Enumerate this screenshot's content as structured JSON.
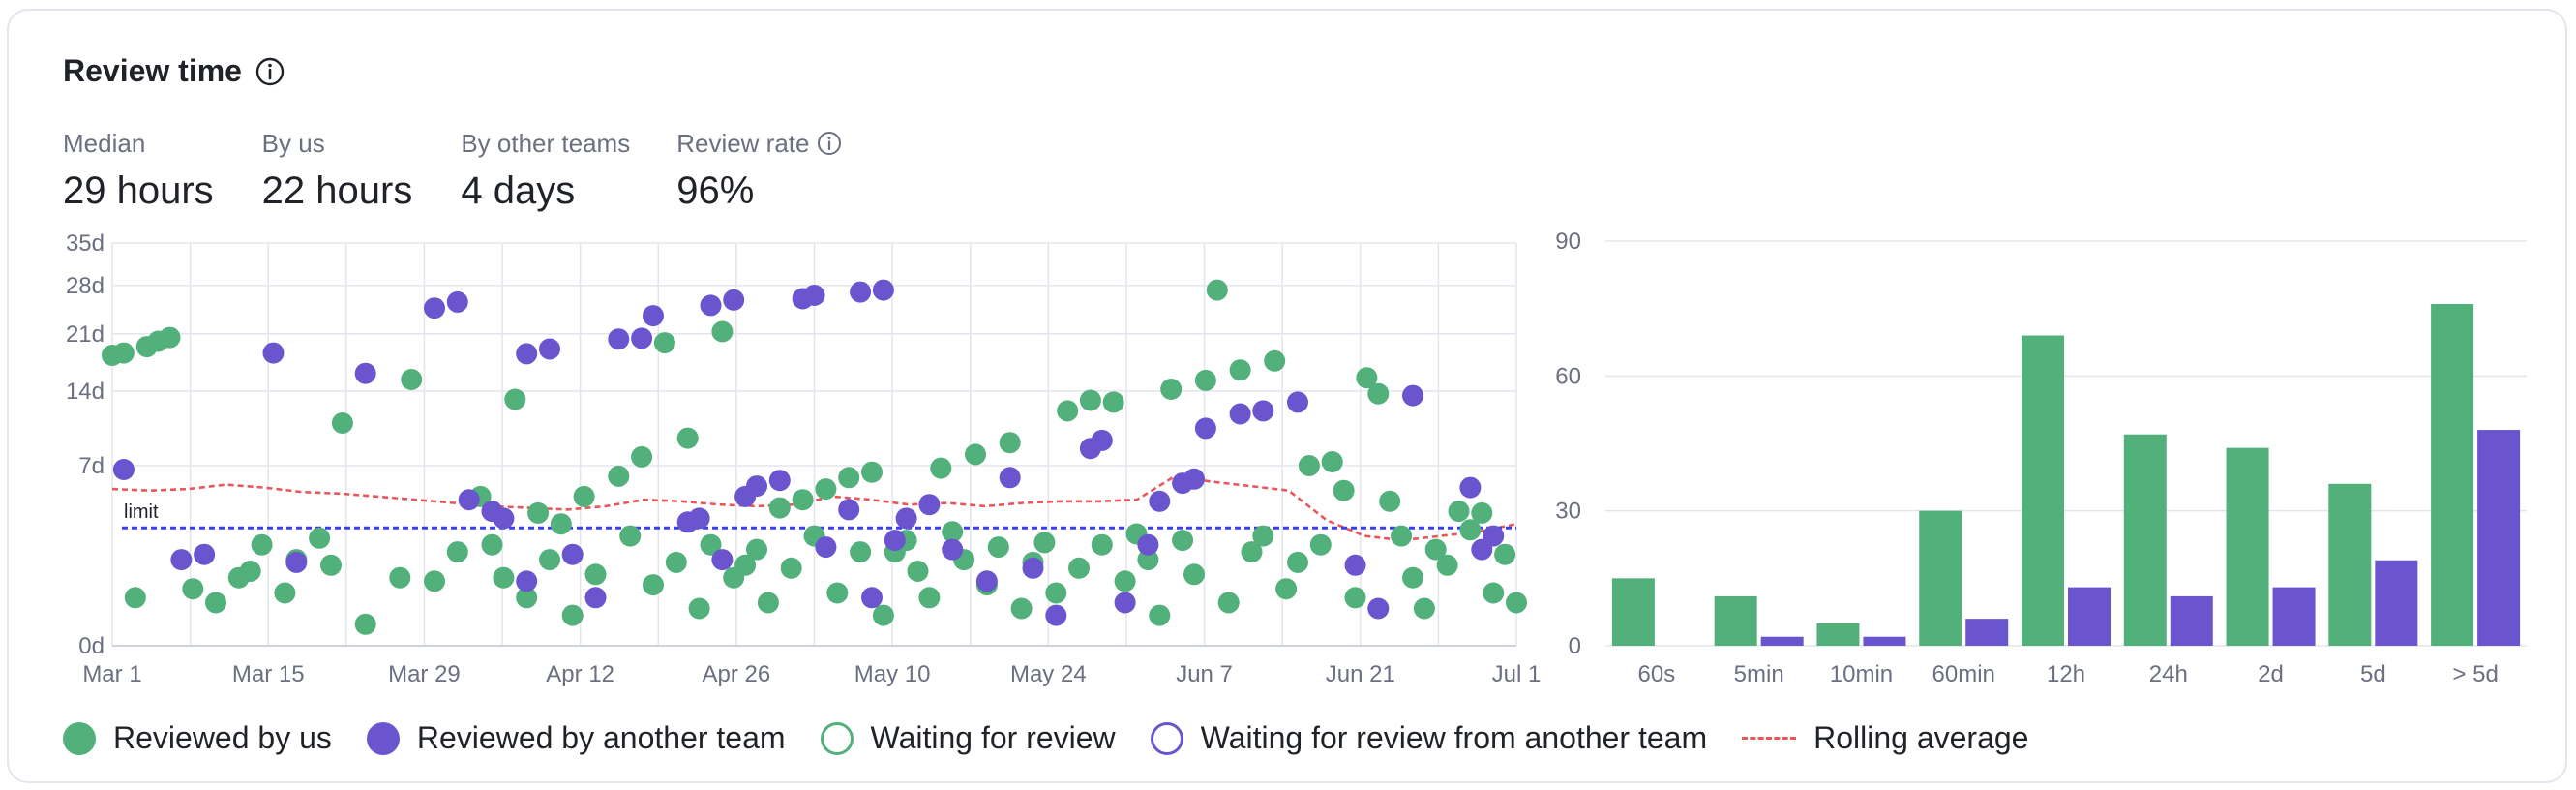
{
  "header": {
    "title": "Review time"
  },
  "stats": [
    {
      "label": "Median",
      "value": "29 hours"
    },
    {
      "label": "By us",
      "value": "22 hours"
    },
    {
      "label": "By other teams",
      "value": "4 days"
    },
    {
      "label": "Review rate",
      "value": "96%",
      "has_info": true
    }
  ],
  "colors": {
    "us": "#52b07a",
    "other": "#6a55cf",
    "rolling": "#e8575a",
    "limit": "#3b3fe6"
  },
  "legend": [
    {
      "label": "Reviewed by us",
      "style": "filled",
      "color": "#52b07a"
    },
    {
      "label": "Reviewed by another team",
      "style": "filled",
      "color": "#6a55cf"
    },
    {
      "label": "Waiting for review",
      "style": "outline",
      "color": "#52b07a"
    },
    {
      "label": "Waiting for review from another team",
      "style": "outline",
      "color": "#6a55cf"
    },
    {
      "label": "Rolling average",
      "style": "dashed",
      "color": "#e8575a"
    }
  ],
  "chart_data": [
    {
      "type": "scatter",
      "x_start": "Mar 1",
      "x_end": "Jul 1",
      "x_ticks": [
        "Mar 1",
        "Mar 15",
        "Mar 29",
        "Apr 12",
        "Apr 26",
        "May 10",
        "May 24",
        "Jun 7",
        "Jun 21",
        "Jul 1"
      ],
      "y_ticks": [
        "0d",
        "7d",
        "14d",
        "21d",
        "28d",
        "35d"
      ],
      "ylim_days": [
        0,
        35
      ],
      "grid": true,
      "limit": {
        "label": "limit",
        "value_days": 3
      },
      "rolling_average_days": [
        5.3,
        5.2,
        5.3,
        5.6,
        5.4,
        5.1,
        5.0,
        4.8,
        4.6,
        4.4,
        4.2,
        4.1,
        4.0,
        4.2,
        4.6,
        4.5,
        4.3,
        4.2,
        4.3,
        4.8,
        4.6,
        4.3,
        4.4,
        4.2,
        4.4,
        4.5,
        4.5,
        4.6,
        6.2,
        5.8,
        5.5,
        5.2,
        3.4,
        2.6,
        2.4,
        2.6,
        2.8,
        3.2
      ],
      "series": [
        {
          "name": "Reviewed by us",
          "points": [
            {
              "x": 0,
              "y": 18.2
            },
            {
              "x": 1,
              "y": 18.5
            },
            {
              "x": 3,
              "y": 19.3
            },
            {
              "x": 4,
              "y": 20.0
            },
            {
              "x": 5,
              "y": 20.5
            },
            {
              "x": 20,
              "y": 10.7
            },
            {
              "x": 48,
              "y": 19.8
            },
            {
              "x": 53,
              "y": 21.3
            },
            {
              "x": 96,
              "y": 27.3
            },
            {
              "x": 26,
              "y": 15.3
            },
            {
              "x": 35,
              "y": 13.1
            },
            {
              "x": 32,
              "y": 4.8
            },
            {
              "x": 37,
              "y": 3.8
            },
            {
              "x": 39,
              "y": 3.2
            },
            {
              "x": 41,
              "y": 4.8
            },
            {
              "x": 44,
              "y": 6.2
            },
            {
              "x": 46,
              "y": 7.7
            },
            {
              "x": 50,
              "y": 9.3
            },
            {
              "x": 58,
              "y": 4.1
            },
            {
              "x": 60,
              "y": 4.6
            },
            {
              "x": 62,
              "y": 5.3
            },
            {
              "x": 64,
              "y": 6.1
            },
            {
              "x": 66,
              "y": 6.5
            },
            {
              "x": 72,
              "y": 6.8
            },
            {
              "x": 75,
              "y": 7.9
            },
            {
              "x": 78,
              "y": 8.9
            },
            {
              "x": 83,
              "y": 11.9
            },
            {
              "x": 85,
              "y": 13.0
            },
            {
              "x": 87,
              "y": 12.8
            },
            {
              "x": 92,
              "y": 14.2
            },
            {
              "x": 95,
              "y": 15.2
            },
            {
              "x": 98,
              "y": 16.4
            },
            {
              "x": 101,
              "y": 17.5
            },
            {
              "x": 104,
              "y": 7.0
            },
            {
              "x": 106,
              "y": 7.3
            },
            {
              "x": 107,
              "y": 5.2
            },
            {
              "x": 109,
              "y": 15.5
            },
            {
              "x": 110,
              "y": 13.7
            },
            {
              "x": 111,
              "y": 4.5
            },
            {
              "x": 117,
              "y": 3.9
            },
            {
              "x": 119,
              "y": 3.8
            },
            {
              "x": 2,
              "y": 0.5
            },
            {
              "x": 7,
              "y": 0.7
            },
            {
              "x": 9,
              "y": 0.4
            },
            {
              "x": 11,
              "y": 1.0
            },
            {
              "x": 13,
              "y": 2.2
            },
            {
              "x": 15,
              "y": 0.6
            },
            {
              "x": 16,
              "y": 1.6
            },
            {
              "x": 18,
              "y": 2.5
            },
            {
              "x": 22,
              "y": 0.1
            },
            {
              "x": 25,
              "y": 1.0
            },
            {
              "x": 28,
              "y": 0.9
            },
            {
              "x": 30,
              "y": 1.9
            },
            {
              "x": 33,
              "y": 2.2
            },
            {
              "x": 36,
              "y": 0.5
            },
            {
              "x": 38,
              "y": 1.6
            },
            {
              "x": 40,
              "y": 0.2
            },
            {
              "x": 42,
              "y": 1.1
            },
            {
              "x": 45,
              "y": 2.6
            },
            {
              "x": 47,
              "y": 0.8
            },
            {
              "x": 49,
              "y": 1.5
            },
            {
              "x": 51,
              "y": 0.3
            },
            {
              "x": 52,
              "y": 2.2
            },
            {
              "x": 54,
              "y": 1.0
            },
            {
              "x": 56,
              "y": 2.0
            },
            {
              "x": 57,
              "y": 0.4
            },
            {
              "x": 59,
              "y": 1.3
            },
            {
              "x": 61,
              "y": 2.6
            },
            {
              "x": 63,
              "y": 0.6
            },
            {
              "x": 65,
              "y": 1.9
            },
            {
              "x": 67,
              "y": 0.2
            },
            {
              "x": 69,
              "y": 2.4
            },
            {
              "x": 70,
              "y": 1.2
            },
            {
              "x": 71,
              "y": 0.5
            },
            {
              "x": 73,
              "y": 2.8
            },
            {
              "x": 74,
              "y": 1.6
            },
            {
              "x": 76,
              "y": 0.8
            },
            {
              "x": 77,
              "y": 2.1
            },
            {
              "x": 79,
              "y": 0.3
            },
            {
              "x": 80,
              "y": 1.5
            },
            {
              "x": 81,
              "y": 2.3
            },
            {
              "x": 82,
              "y": 0.6
            },
            {
              "x": 84,
              "y": 1.3
            },
            {
              "x": 86,
              "y": 2.2
            },
            {
              "x": 88,
              "y": 0.9
            },
            {
              "x": 89,
              "y": 2.7
            },
            {
              "x": 90,
              "y": 1.6
            },
            {
              "x": 91,
              "y": 0.2
            },
            {
              "x": 93,
              "y": 2.4
            },
            {
              "x": 94,
              "y": 1.1
            },
            {
              "x": 97,
              "y": 0.4
            },
            {
              "x": 99,
              "y": 1.9
            },
            {
              "x": 100,
              "y": 2.6
            },
            {
              "x": 102,
              "y": 0.7
            },
            {
              "x": 103,
              "y": 1.5
            },
            {
              "x": 105,
              "y": 2.2
            },
            {
              "x": 108,
              "y": 0.5
            },
            {
              "x": 112,
              "y": 2.6
            },
            {
              "x": 113,
              "y": 1.0
            },
            {
              "x": 114,
              "y": 0.3
            },
            {
              "x": 115,
              "y": 2.0
            },
            {
              "x": 116,
              "y": 1.4
            },
            {
              "x": 118,
              "y": 2.9
            },
            {
              "x": 120,
              "y": 0.6
            },
            {
              "x": 121,
              "y": 1.8
            },
            {
              "x": 122,
              "y": 0.4
            },
            {
              "x": 19,
              "y": 1.4
            },
            {
              "x": 34,
              "y": 1.0
            },
            {
              "x": 55,
              "y": 1.4
            },
            {
              "x": 68,
              "y": 1.9
            },
            {
              "x": 12,
              "y": 1.2
            }
          ]
        },
        {
          "name": "Reviewed by another team",
          "points": [
            {
              "x": 1,
              "y": 6.7
            },
            {
              "x": 6,
              "y": 1.6
            },
            {
              "x": 8,
              "y": 1.8
            },
            {
              "x": 16,
              "y": 1.5
            },
            {
              "x": 31,
              "y": 4.6
            },
            {
              "x": 33,
              "y": 3.9
            },
            {
              "x": 34,
              "y": 3.5
            },
            {
              "x": 36,
              "y": 0.9
            },
            {
              "x": 40,
              "y": 1.8
            },
            {
              "x": 42,
              "y": 0.5
            },
            {
              "x": 50,
              "y": 3.3
            },
            {
              "x": 51,
              "y": 3.5
            },
            {
              "x": 53,
              "y": 1.6
            },
            {
              "x": 55,
              "y": 4.8
            },
            {
              "x": 56,
              "y": 5.5
            },
            {
              "x": 58,
              "y": 5.9
            },
            {
              "x": 62,
              "y": 2.1
            },
            {
              "x": 64,
              "y": 4.0
            },
            {
              "x": 66,
              "y": 0.5
            },
            {
              "x": 68,
              "y": 2.4
            },
            {
              "x": 69,
              "y": 3.5
            },
            {
              "x": 71,
              "y": 4.3
            },
            {
              "x": 73,
              "y": 2.0
            },
            {
              "x": 76,
              "y": 0.9
            },
            {
              "x": 78,
              "y": 6.1
            },
            {
              "x": 80,
              "y": 1.3
            },
            {
              "x": 82,
              "y": 0.2
            },
            {
              "x": 85,
              "y": 8.4
            },
            {
              "x": 86,
              "y": 9.1
            },
            {
              "x": 88,
              "y": 0.4
            },
            {
              "x": 90,
              "y": 2.2
            },
            {
              "x": 91,
              "y": 4.5
            },
            {
              "x": 93,
              "y": 5.7
            },
            {
              "x": 94,
              "y": 6.0
            },
            {
              "x": 95,
              "y": 10.2
            },
            {
              "x": 98,
              "y": 11.6
            },
            {
              "x": 100,
              "y": 11.9
            },
            {
              "x": 103,
              "y": 12.8
            },
            {
              "x": 108,
              "y": 1.4
            },
            {
              "x": 110,
              "y": 0.3
            },
            {
              "x": 113,
              "y": 13.5
            },
            {
              "x": 118,
              "y": 5.4
            },
            {
              "x": 119,
              "y": 2.0
            },
            {
              "x": 120,
              "y": 2.6
            },
            {
              "x": 14,
              "y": 18.5
            },
            {
              "x": 22,
              "y": 16.0
            },
            {
              "x": 28,
              "y": 24.6
            },
            {
              "x": 30,
              "y": 25.5
            },
            {
              "x": 36,
              "y": 18.4
            },
            {
              "x": 38,
              "y": 19.0
            },
            {
              "x": 44,
              "y": 20.3
            },
            {
              "x": 46,
              "y": 20.4
            },
            {
              "x": 47,
              "y": 23.5
            },
            {
              "x": 52,
              "y": 25.0
            },
            {
              "x": 54,
              "y": 25.8
            },
            {
              "x": 60,
              "y": 26.0
            },
            {
              "x": 61,
              "y": 26.5
            },
            {
              "x": 65,
              "y": 27.0
            },
            {
              "x": 67,
              "y": 27.3
            }
          ]
        }
      ]
    },
    {
      "type": "bar",
      "categories": [
        "60s",
        "5min",
        "10min",
        "60min",
        "12h",
        "24h",
        "2d",
        "5d",
        "> 5d"
      ],
      "series": [
        {
          "name": "Reviewed by us",
          "values": [
            15,
            11,
            5,
            30,
            69,
            47,
            44,
            36,
            76
          ]
        },
        {
          "name": "Reviewed by another team",
          "values": [
            0,
            2,
            2,
            6,
            13,
            11,
            13,
            19,
            48
          ]
        }
      ],
      "y_ticks": [
        "0",
        "30",
        "60",
        "90"
      ],
      "ylim": [
        0,
        90
      ],
      "grid": true
    }
  ]
}
